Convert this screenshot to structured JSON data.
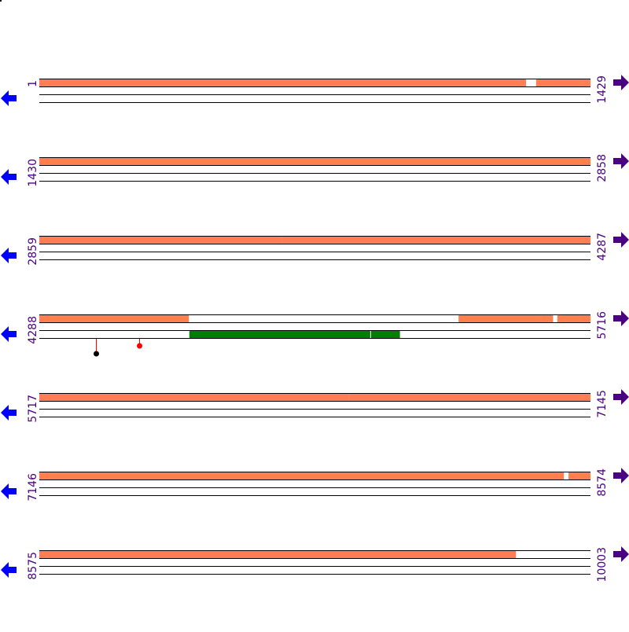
{
  "colors": {
    "coverage": "#ff7f50",
    "domain": "#008000",
    "label": "#4b0082",
    "left_arrow": "#0000ff",
    "right_arrow": "#4b0082",
    "mutation_black": "#000000",
    "mutation_red": "#ff0000"
  },
  "icons": {
    "left": "arrow-left-icon",
    "right": "arrow-right-icon"
  },
  "rows": [
    {
      "start": "1",
      "end": "1429",
      "s": 1,
      "e": 1429,
      "coverage": [
        [
          1,
          1262
        ],
        [
          1289,
          1429
        ]
      ],
      "domains": [],
      "mutations": []
    },
    {
      "start": "1430",
      "end": "2858",
      "s": 1430,
      "e": 2858,
      "coverage": [
        [
          1430,
          2858
        ]
      ],
      "domains": [],
      "mutations": []
    },
    {
      "start": "2859",
      "end": "4287",
      "s": 2859,
      "e": 4287,
      "coverage": [
        [
          2859,
          3486
        ],
        [
          3487,
          4287
        ]
      ],
      "domains": [],
      "mutations": []
    },
    {
      "start": "4288",
      "end": "5716",
      "s": 4288,
      "e": 5716,
      "coverage": [
        [
          4288,
          4675
        ],
        [
          5375,
          5619
        ],
        [
          5631,
          5716
        ]
      ],
      "domains": [
        [
          4677,
          5147
        ],
        [
          5148,
          5224
        ]
      ],
      "mutations": [
        {
          "pos": 4435,
          "color": "#000000",
          "level": 2
        },
        {
          "pos": 4547,
          "color": "#ff0000",
          "level": 1
        }
      ]
    },
    {
      "start": "5717",
      "end": "7145",
      "s": 5717,
      "e": 7145,
      "coverage": [
        [
          5717,
          6519
        ],
        [
          6520,
          7145
        ]
      ],
      "domains": [],
      "mutations": []
    },
    {
      "start": "7146",
      "end": "8574",
      "s": 7146,
      "e": 8574,
      "coverage": [
        [
          7146,
          8505
        ],
        [
          8518,
          8574
        ]
      ],
      "domains": [],
      "mutations": []
    },
    {
      "start": "8575",
      "end": "10003",
      "s": 8575,
      "e": 10003,
      "coverage": [
        [
          8575,
          9810
        ]
      ],
      "domains": [],
      "mutations": []
    }
  ]
}
